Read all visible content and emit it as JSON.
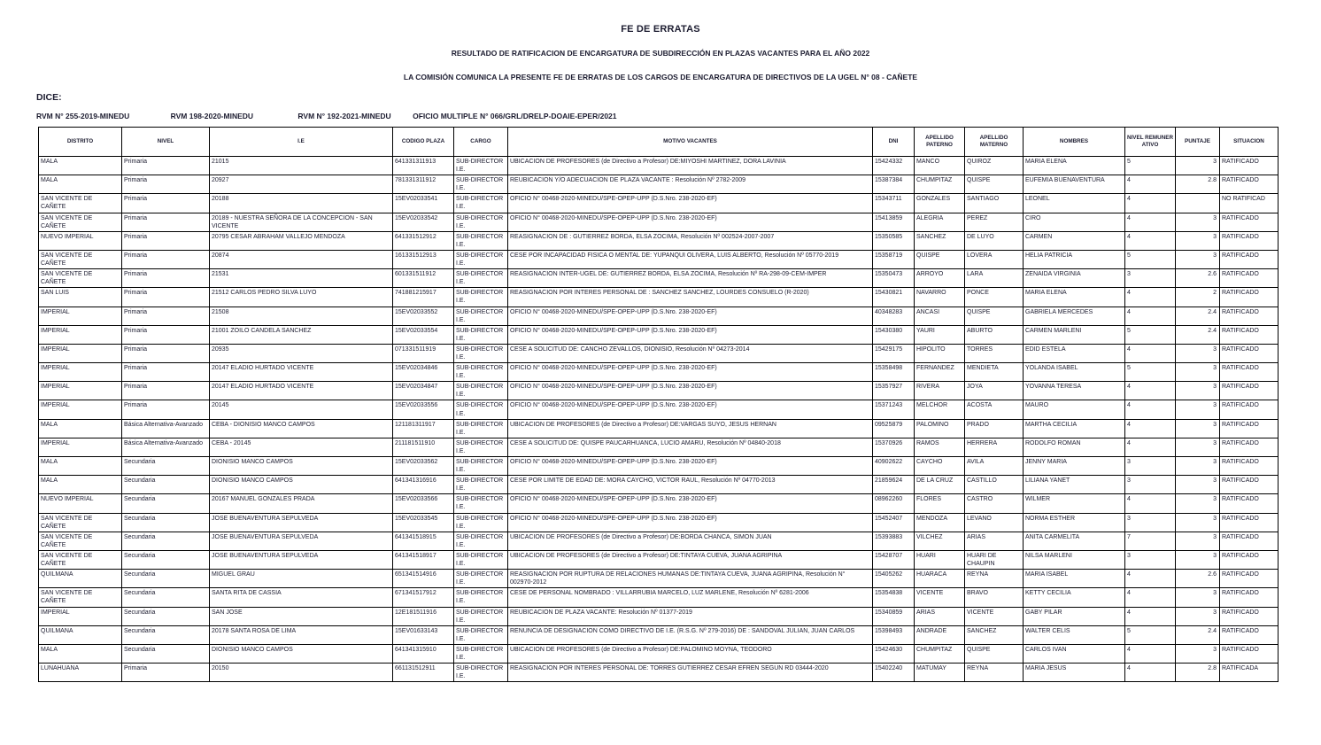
{
  "header": {
    "title": "FE DE ERRATAS",
    "subtitle1": "RESULTADO DE RATIFICACION DE ENCARGATURA DE SUBDIRECCIÓN EN PLAZAS VACANTES PARA EL AÑO 2022",
    "subtitle2": "LA COMISIÓN COMUNICA LA PRESENTE FE DE ERRATAS DE LOS CARGOS DE ENCARGATURA DE DIRECTIVOS DE LA UGEL N° 08 - CAÑETE",
    "dice_label": "DICE:",
    "rvm_items": [
      "RVM N° 255-2019-MINEDU",
      "RVM  198-2020-MINEDU",
      "RVM N° 192-2021-MINEDU",
      "OFICIO MULTIPLE N° 066/GRL/DRELP-DOAIE-EPER/2021"
    ]
  },
  "table": {
    "columns": [
      "DISTRITO",
      "NIVEL",
      "I.E",
      "CODIGO PLAZA",
      "CARGO",
      "MOTIVO VACANTES",
      "DNI",
      "APELLIDO PATERNO",
      "APELLIDO MATERNO",
      "NOMBRES",
      "NIVEL REMUNER ATIVO",
      "PUNTAJE",
      "SITUACION"
    ],
    "rows": [
      [
        "MALA",
        "Primaria",
        "21015",
        "641331311913",
        "SUB-DIRECTOR I.E.",
        "UBICACION DE PROFESORES (de Directivo a Profesor) DE:MIYOSHI MARTINEZ, DORA LAVINIA",
        "15424332",
        "MANCO",
        "QUIROZ",
        "MARIA ELENA",
        "5",
        "3",
        "RATIFICADO"
      ],
      [
        "MALA",
        "Primaria",
        "20927",
        "781331311912",
        "SUB-DIRECTOR I.E.",
        "REUBICACION Y/O ADECUACION DE PLAZA VACANTE : Resolución Nº 2782-2009",
        "15387384",
        "CHUMPITAZ",
        "QUISPE",
        "EUFEMIA BUENAVENTURA",
        "4",
        "2.8",
        "RATIFICADO"
      ],
      [
        "SAN VICENTE DE CAÑETE",
        "Primaria",
        "20188",
        "15EV02033541",
        "SUB-DIRECTOR I.E.",
        "OFICIO N° 00468-2020-MINEDU/SPE-OPEP-UPP (D.S.Nro. 238-2020-EF)",
        "15343711",
        "GONZALES",
        "SANTIAGO",
        "LEONEL",
        "4",
        "",
        "NO RATIFICAD"
      ],
      [
        "SAN VICENTE DE CAÑETE",
        "Primaria",
        "20189 - NUESTRA SEÑORA DE LA CONCEPCION - SAN VICENTE",
        "15EV02033542",
        "SUB-DIRECTOR I.E.",
        "OFICIO N° 00468-2020-MINEDU/SPE-OPEP-UPP (D.S.Nro. 238-2020-EF)",
        "15413859",
        "ALEGRIA",
        "PEREZ",
        "CIRO",
        "4",
        "3",
        "RATIFICADO"
      ],
      [
        "NUEVO IMPERIAL",
        "Primaria",
        "20795 CESAR ABRAHAM VALLEJO MENDOZA",
        "641331512912",
        "SUB-DIRECTOR I.E.",
        "REASIGNACION DE : GUTIERREZ BORDA, ELSA ZOCIMA, Resolución Nº 002524-2007-2007",
        "15350585",
        "SANCHEZ",
        "DE LUYO",
        "CARMEN",
        "4",
        "3",
        "RATIFICADO"
      ],
      [
        "SAN VICENTE DE CAÑETE",
        "Primaria",
        "20874",
        "161331512913",
        "SUB-DIRECTOR I.E.",
        "CESE POR INCAPACIDAD FISICA O MENTAL DE: YUPANQUI OLIVERA, LUIS ALBERTO, Resolución Nº 05770-2019",
        "15358719",
        "QUISPE",
        "LOVERA",
        "HELIA PATRICIA",
        "5",
        "3",
        "RATIFICADO"
      ],
      [
        "SAN VICENTE DE CAÑETE",
        "Primaria",
        "21531",
        "601331511912",
        "SUB-DIRECTOR I.E.",
        "REASIGNACION INTER-UGEL DE: GUTIERREZ BORDA, ELSA ZOCIMA, Resolución Nº RA-298-09-CEM-IMPER",
        "15350473",
        "ARROYO",
        "LARA",
        "ZENAIDA VIRGINIA",
        "3",
        "2.6",
        "RATIFICADO"
      ],
      [
        "SAN LUIS",
        "Primaria",
        "21512 CARLOS PEDRO SILVA LUYO",
        "741881215917",
        "SUB-DIRECTOR I.E.",
        "REASIGNACION POR INTERES PERSONAL DE : SANCHEZ SANCHEZ, LOURDES CONSUELO (R-2020)",
        "15430821",
        "NAVARRO",
        "PONCE",
        "MARIA ELENA",
        "4",
        "2",
        "RATIFICADO"
      ],
      [
        "IMPERIAL",
        "Primaria",
        "21508",
        "15EV02033552",
        "SUB-DIRECTOR I.E.",
        "OFICIO N° 00468-2020-MINEDU/SPE-OPEP-UPP (D.S.Nro. 238-2020-EF)",
        "40348283",
        "ANCASI",
        "QUISPE",
        "GABRIELA MERCEDES",
        "4",
        "2.4",
        "RATIFICADO"
      ],
      [
        "IMPERIAL",
        "Primaria",
        "21001 ZOILO CANDELA SANCHEZ",
        "15EV02033554",
        "SUB-DIRECTOR I.E.",
        "OFICIO N° 00468-2020-MINEDU/SPE-OPEP-UPP (D.S.Nro. 238-2020-EF)",
        "15430380",
        "YAURI",
        "ABURTO",
        "CARMEN MARLENI",
        "5",
        "2.4",
        "RATIFICADO"
      ],
      [
        "IMPERIAL",
        "Primaria",
        "20935",
        "071331511919",
        "SUB-DIRECTOR I.E.",
        "CESE A SOLICITUD DE: CANCHO ZEVALLOS, DIONISIO, Resolución Nº 04273-2014",
        "15429175",
        "HIPOLITO",
        "TORRES",
        "EDID ESTELA",
        "4",
        "3",
        "RATIFICADO"
      ],
      [
        "IMPERIAL",
        "Primaria",
        "20147 ELADIO HURTADO VICENTE",
        "15EV02034846",
        "SUB-DIRECTOR I.E.",
        "OFICIO N° 00468-2020-MINEDU/SPE-OPEP-UPP (D.S.Nro. 238-2020-EF)",
        "15358498",
        "FERNANDEZ",
        "MENDIETA",
        "YOLANDA ISABEL",
        "5",
        "3",
        "RATIFICADO"
      ],
      [
        "IMPERIAL",
        "Primaria",
        "20147 ELADIO HURTADO VICENTE",
        "15EV02034847",
        "SUB-DIRECTOR I.E.",
        "OFICIO N° 00468-2020-MINEDU/SPE-OPEP-UPP (D.S.Nro. 238-2020-EF)",
        "15357927",
        "RIVERA",
        "JOYA",
        "YOVANNA TERESA",
        "4",
        "3",
        "RATIFICADO"
      ],
      [
        "IMPERIAL",
        "Primaria",
        "20145",
        "15EV02033556",
        "SUB-DIRECTOR I.E.",
        "OFICIO N° 00468-2020-MINEDU/SPE-OPEP-UPP (D.S.Nro. 238-2020-EF)",
        "15371243",
        "MELCHOR",
        "ACOSTA",
        "MAURO",
        "4",
        "3",
        "RATIFICADO"
      ],
      [
        "MALA",
        "Básica Alternativa-Avanzado",
        "CEBA - DIONISIO MANCO CAMPOS",
        "121181311917",
        "SUB-DIRECTOR I.E.",
        "UBICACION DE PROFESORES (de Directivo a Profesor) DE:VARGAS SUYO, JESUS HERNAN",
        "09525879",
        "PALOMINO",
        "PRADO",
        "MARTHA CECILIA",
        "4",
        "3",
        "RATIFICADO"
      ],
      [
        "IMPERIAL",
        "Básica Alternativa-Avanzado",
        "CEBA - 20145",
        "211181511910",
        "SUB-DIRECTOR I.E.",
        "CESE A SOLICITUD DE: QUISPE PAUCARHUANCA, LUCIO AMARU, Resolución Nº 04840-2018",
        "15370926",
        "RAMOS",
        "HERRERA",
        "RODOLFO ROMAN",
        "4",
        "3",
        "RATIFICADO"
      ],
      [
        "MALA",
        "Secundaria",
        "DIONISIO MANCO CAMPOS",
        "15EV02033562",
        "SUB-DIRECTOR I.E.",
        "OFICIO N° 00468-2020-MINEDU/SPE-OPEP-UPP (D.S.Nro. 238-2020-EF)",
        "40902622",
        "CAYCHO",
        "AVILA",
        "JENNY MARIA",
        "3",
        "3",
        "RATIFICADO"
      ],
      [
        "MALA",
        "Secundaria",
        "DIONISIO MANCO CAMPOS",
        "641341316916",
        "SUB-DIRECTOR I.E.",
        "CESE POR LIMITE DE EDAD DE: MORA CAYCHO, VICTOR RAUL, Resolución Nº 04770-2013",
        "21859624",
        "DE LA CRUZ",
        "CASTILLO",
        "LILIANA YANET",
        "3",
        "3",
        "RATIFICADO"
      ],
      [
        "NUEVO IMPERIAL",
        "Secundaria",
        "20167 MANUEL GONZALES PRADA",
        "15EV02033566",
        "SUB-DIRECTOR I.E.",
        "OFICIO N° 00468-2020-MINEDU/SPE-OPEP-UPP (D.S.Nro. 238-2020-EF)",
        "08962260",
        "FLORES",
        "CASTRO",
        "WILMER",
        "4",
        "3",
        "RATIFICADO"
      ],
      [
        "SAN VICENTE DE CAÑETE",
        "Secundaria",
        "JOSE BUENAVENTURA SEPULVEDA",
        "15EV02033545",
        "SUB-DIRECTOR I.E.",
        "OFICIO N° 00468-2020-MINEDU/SPE-OPEP-UPP (D.S.Nro. 238-2020-EF)",
        "15452407",
        "MENDOZA",
        "LEVANO",
        "NORMA ESTHER",
        "3",
        "3",
        "RATIFICADO"
      ],
      [
        "SAN VICENTE DE CAÑETE",
        "Secundaria",
        "JOSE BUENAVENTURA SEPULVEDA",
        "641341518915",
        "SUB-DIRECTOR I.E.",
        "UBICACION DE PROFESORES (de Directivo a Profesor) DE:BORDA CHANCA, SIMON JUAN",
        "15393883",
        "VILCHEZ",
        "ARIAS",
        "ANITA CARMELITA",
        "7",
        "3",
        "RATIFICADO"
      ],
      [
        "SAN VICENTE DE CAÑETE",
        "Secundaria",
        "JOSE BUENAVENTURA SEPULVEDA",
        "641341518917",
        "SUB-DIRECTOR I.E.",
        "UBICACION DE PROFESORES (de Directivo a Profesor) DE:TINTAYA CUEVA, JUANA AGRIPINA",
        "15428707",
        "HUARI",
        "HUARI DE CHAUPIN",
        "NILSA MARLENI",
        "3",
        "3",
        "RATIFICADO"
      ],
      [
        "QUILMANA",
        "Secundaria",
        "MIGUEL GRAU",
        "651341514916",
        "SUB-DIRECTOR I.E.",
        "REASIGNACION POR RUPTURA DE RELACIONES HUMANAS DE:TINTAYA CUEVA, JUANA AGRIPINA, Resolución N° 002970-2012",
        "15405262",
        "HUARACA",
        "REYNA",
        "MARIA ISABEL",
        "4",
        "2.6",
        "RATIFICADO"
      ],
      [
        "SAN VICENTE DE CAÑETE",
        "Secundaria",
        "SANTA RITA DE CASSIA",
        "671341517912",
        "SUB-DIRECTOR I.E.",
        "CESE DE PERSONAL NOMBRADO : VILLARRUBIA MARCELO, LUZ MARLENE, Resolución Nº 6281-2006",
        "15354838",
        "VICENTE",
        "BRAVO",
        "KETTY CECILIA",
        "4",
        "3",
        "RATIFICADO"
      ],
      [
        "IMPERIAL",
        "Secundaria",
        "SAN JOSE",
        "12E181511916",
        "SUB-DIRECTOR I.E.",
        "REUBICACION DE PLAZA VACANTE: Resolución Nº 01377-2019",
        "15340859",
        "ARIAS",
        "VICENTE",
        "GABY PILAR",
        "4",
        "3",
        "RATIFICADO"
      ],
      [
        "QUILMANA",
        "Secundaria",
        "20178 SANTA ROSA DE LIMA",
        "15EV01633143",
        "SUB-DIRECTOR I.E.",
        "RENUNCIA DE DESIGNACION COMO DIRECTIVO DE I.E. (R.S.G. Nº 279-2016) DE : SANDOVAL JULIAN, JUAN CARLOS",
        "15398493",
        "ANDRADE",
        "SANCHEZ",
        "WALTER CELIS",
        "5",
        "2.4",
        "RATIFICADO"
      ],
      [
        "MALA",
        "Secundaria",
        "DIONISIO MANCO CAMPOS",
        "641341315910",
        "SUB-DIRECTOR I.E.",
        "UBICACION DE PROFESORES (de Directivo a Profesor) DE:PALOMINO MOYNA, TEODORO",
        "15424630",
        "CHUMPITAZ",
        "QUISPE",
        "CARLOS IVAN",
        "4",
        "3",
        "RATIFICADO"
      ],
      [
        "LUNAHUANA",
        "Primaria",
        "20150",
        "661131512911",
        "SUB-DIRECTOR I.E.",
        "REASIGNACION POR INTERES PERSONAL DE: TORRES GUTIERREZ CESAR EFREN SEGUN RD 03444-2020",
        "15402240",
        "MATUMAY",
        "REYNA",
        "MARIA JESUS",
        "4",
        "2.8",
        "RATIFICADA"
      ]
    ]
  }
}
